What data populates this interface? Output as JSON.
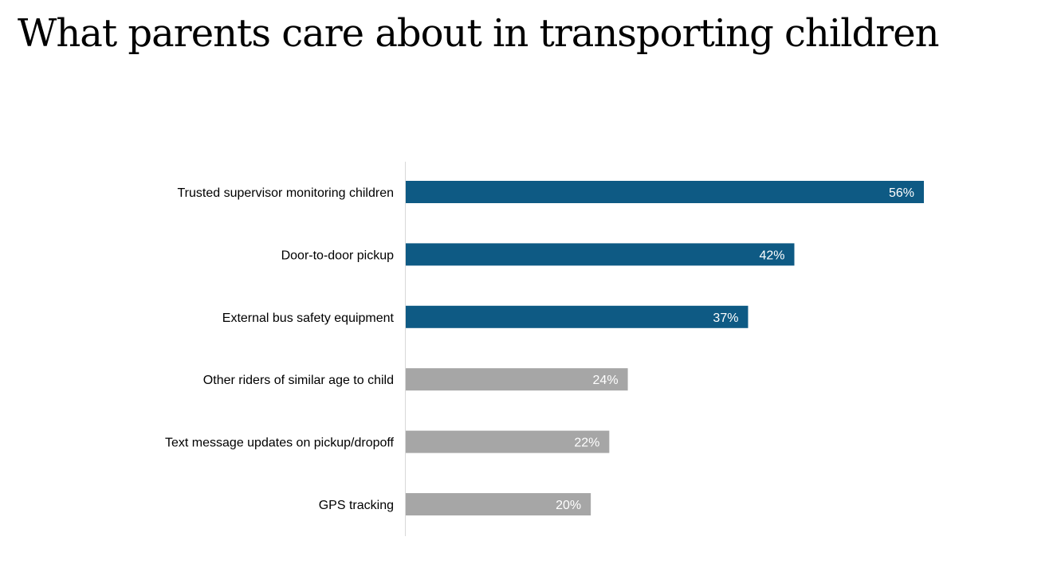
{
  "page": {
    "title": "What parents care about in transporting children"
  },
  "colors": {
    "highlight": "#0e5a84",
    "muted": "#a6a6a6",
    "axis": "#d9d9d9",
    "label": "#000000",
    "value_label": "#ffffff"
  },
  "chart_data": {
    "type": "bar",
    "orientation": "horizontal",
    "title": "What parents care about in transporting children",
    "categories": [
      "Trusted supervisor monitoring children",
      "Door-to-door pickup",
      "External bus safety equipment",
      "Other riders of similar age to child",
      "Text message updates on pickup/dropoff",
      "GPS tracking"
    ],
    "values": [
      56,
      42,
      37,
      24,
      22,
      20
    ],
    "value_labels": [
      "56%",
      "42%",
      "37%",
      "24%",
      "22%",
      "20%"
    ],
    "highlight": [
      true,
      true,
      true,
      false,
      false,
      false
    ],
    "xlabel": "",
    "ylabel": "",
    "xlim": [
      0,
      100
    ],
    "grid": false,
    "legend": "none"
  }
}
